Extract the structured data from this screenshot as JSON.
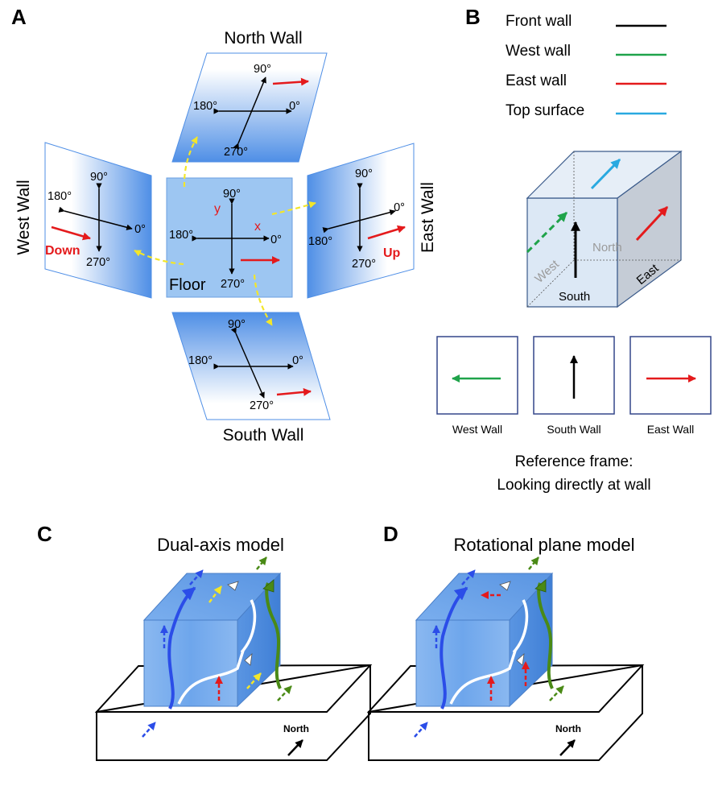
{
  "panel_a": {
    "letter": "A",
    "north_title": "North Wall",
    "south_title": "South Wall",
    "west_title": "West Wall",
    "east_title": "East Wall",
    "floor_label": "Floor",
    "x_label": "x",
    "y_label": "y",
    "down_label": "Down",
    "up_label": "Up",
    "deg_0": "0°",
    "deg_90": "90°",
    "deg_180": "180°",
    "deg_270": "270°"
  },
  "panel_b": {
    "letter": "B",
    "legend": [
      {
        "label": "Front wall",
        "color": "#000000"
      },
      {
        "label": "West wall",
        "color": "#1fa34a"
      },
      {
        "label": "East wall",
        "color": "#e41a1c"
      },
      {
        "label": "Top surface",
        "color": "#29a9e0"
      }
    ],
    "cube_north": "North",
    "cube_west": "West",
    "cube_south": "South",
    "cube_east": "East",
    "frame_labels": [
      "West Wall",
      "South Wall",
      "East Wall"
    ],
    "caption_line1": "Reference frame:",
    "caption_line2": "Looking directly at wall"
  },
  "panel_c": {
    "letter": "C",
    "title": "Dual-axis model",
    "north": "North"
  },
  "panel_d": {
    "letter": "D",
    "title": "Rotational plane model",
    "north": "North"
  },
  "colors": {
    "blue_path": "#2b4de8",
    "green_path": "#4a8a16",
    "yellow_arrow": "#f3e62a",
    "red_arrow": "#e41a1c",
    "wall_blue": "#4f8fe6",
    "floor_blue": "#9dc6f2"
  }
}
